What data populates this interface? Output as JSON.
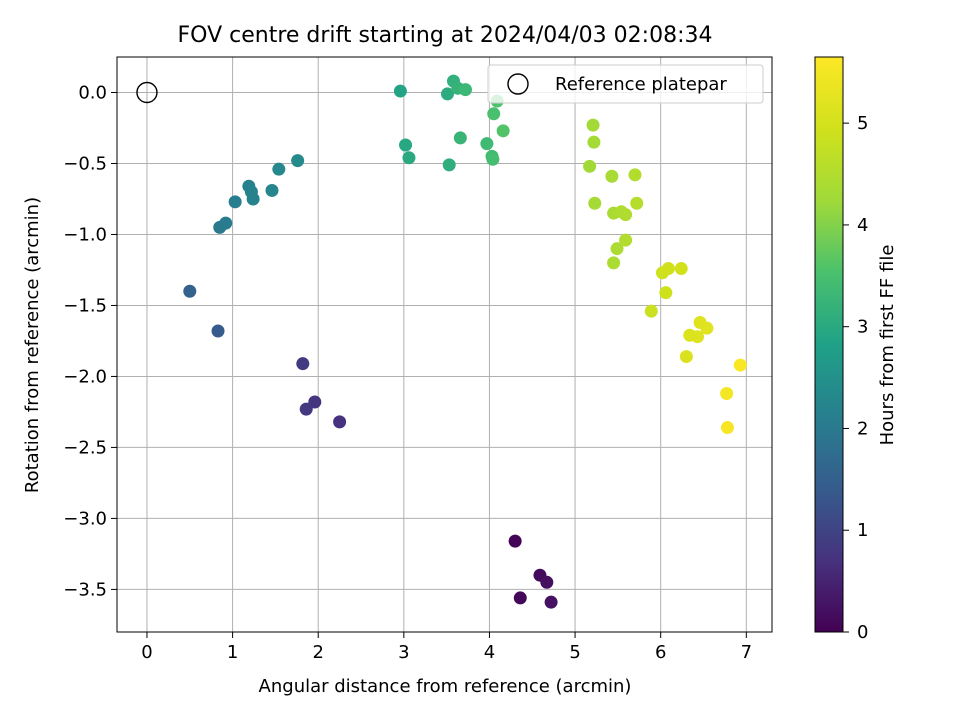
{
  "chart_data": {
    "type": "scatter",
    "title": "FOV centre drift starting at 2024/04/03 02:08:34",
    "xlabel": "Angular distance from reference (arcmin)",
    "ylabel": "Rotation from reference (arcmin)",
    "colorbar_label": "Hours from first FF file",
    "xlim": [
      -0.35,
      7.3
    ],
    "ylim": [
      -3.8,
      0.25
    ],
    "colorbar_range": [
      0,
      5.65
    ],
    "x_ticks": [
      0,
      1,
      2,
      3,
      4,
      5,
      6,
      7
    ],
    "y_ticks": [
      0.0,
      -0.5,
      -1.0,
      -1.5,
      -2.0,
      -2.5,
      -3.0,
      -3.5
    ],
    "colorbar_ticks": [
      0,
      1,
      2,
      3,
      4,
      5
    ],
    "colormap": "viridis",
    "grid": true,
    "legend": {
      "position": "top-right",
      "entries": [
        "Reference platepar"
      ]
    },
    "reference_point": {
      "x": 0,
      "y": 0
    },
    "points": [
      {
        "x": 4.3,
        "y": -3.16,
        "h": 0.05
      },
      {
        "x": 4.36,
        "y": -3.56,
        "h": 0.1
      },
      {
        "x": 4.59,
        "y": -3.4,
        "h": 0.15
      },
      {
        "x": 4.67,
        "y": -3.45,
        "h": 0.2
      },
      {
        "x": 4.72,
        "y": -3.59,
        "h": 0.25
      },
      {
        "x": 2.25,
        "y": -2.32,
        "h": 0.7
      },
      {
        "x": 1.96,
        "y": -2.18,
        "h": 0.75
      },
      {
        "x": 1.86,
        "y": -2.23,
        "h": 0.8
      },
      {
        "x": 1.82,
        "y": -1.91,
        "h": 0.85
      },
      {
        "x": 0.83,
        "y": -1.68,
        "h": 1.4
      },
      {
        "x": 0.5,
        "y": -1.4,
        "h": 1.55
      },
      {
        "x": 0.85,
        "y": -0.95,
        "h": 2.0
      },
      {
        "x": 0.92,
        "y": -0.92,
        "h": 2.05
      },
      {
        "x": 1.03,
        "y": -0.77,
        "h": 2.1
      },
      {
        "x": 1.19,
        "y": -0.66,
        "h": 2.15
      },
      {
        "x": 1.22,
        "y": -0.7,
        "h": 2.18
      },
      {
        "x": 1.24,
        "y": -0.75,
        "h": 2.2
      },
      {
        "x": 1.46,
        "y": -0.69,
        "h": 2.25
      },
      {
        "x": 1.54,
        "y": -0.54,
        "h": 2.3
      },
      {
        "x": 1.76,
        "y": -0.48,
        "h": 2.35
      },
      {
        "x": 2.96,
        "y": 0.01,
        "h": 2.9
      },
      {
        "x": 3.02,
        "y": -0.37,
        "h": 2.95
      },
      {
        "x": 3.06,
        "y": -0.46,
        "h": 3.0
      },
      {
        "x": 3.51,
        "y": -0.01,
        "h": 3.05
      },
      {
        "x": 3.53,
        "y": -0.51,
        "h": 3.1
      },
      {
        "x": 3.58,
        "y": 0.08,
        "h": 3.15
      },
      {
        "x": 3.63,
        "y": 0.03,
        "h": 3.2
      },
      {
        "x": 3.66,
        "y": -0.32,
        "h": 3.25
      },
      {
        "x": 3.72,
        "y": 0.02,
        "h": 3.3
      },
      {
        "x": 3.97,
        "y": -0.36,
        "h": 3.35
      },
      {
        "x": 4.03,
        "y": -0.45,
        "h": 3.4
      },
      {
        "x": 4.04,
        "y": -0.47,
        "h": 3.45
      },
      {
        "x": 4.05,
        "y": -0.15,
        "h": 3.5
      },
      {
        "x": 4.09,
        "y": -0.06,
        "h": 3.55
      },
      {
        "x": 4.16,
        "y": -0.27,
        "h": 3.6
      },
      {
        "x": 5.17,
        "y": -0.52,
        "h": 4.25
      },
      {
        "x": 5.21,
        "y": -0.23,
        "h": 4.28
      },
      {
        "x": 5.22,
        "y": -0.35,
        "h": 4.3
      },
      {
        "x": 5.23,
        "y": -0.78,
        "h": 4.32
      },
      {
        "x": 5.43,
        "y": -0.59,
        "h": 4.35
      },
      {
        "x": 5.45,
        "y": -0.85,
        "h": 4.38
      },
      {
        "x": 5.45,
        "y": -1.2,
        "h": 4.4
      },
      {
        "x": 5.49,
        "y": -1.1,
        "h": 4.42
      },
      {
        "x": 5.54,
        "y": -0.84,
        "h": 4.45
      },
      {
        "x": 5.59,
        "y": -0.86,
        "h": 4.48
      },
      {
        "x": 5.59,
        "y": -1.04,
        "h": 4.5
      },
      {
        "x": 5.7,
        "y": -0.58,
        "h": 4.52
      },
      {
        "x": 5.72,
        "y": -0.78,
        "h": 4.55
      },
      {
        "x": 5.89,
        "y": -1.54,
        "h": 4.85
      },
      {
        "x": 6.02,
        "y": -1.27,
        "h": 4.9
      },
      {
        "x": 6.06,
        "y": -1.41,
        "h": 4.92
      },
      {
        "x": 6.09,
        "y": -1.24,
        "h": 4.95
      },
      {
        "x": 6.24,
        "y": -1.24,
        "h": 4.98
      },
      {
        "x": 6.3,
        "y": -1.86,
        "h": 5.1
      },
      {
        "x": 6.34,
        "y": -1.71,
        "h": 5.12
      },
      {
        "x": 6.43,
        "y": -1.72,
        "h": 5.15
      },
      {
        "x": 6.46,
        "y": -1.62,
        "h": 5.18
      },
      {
        "x": 6.54,
        "y": -1.66,
        "h": 5.2
      },
      {
        "x": 6.77,
        "y": -2.12,
        "h": 5.5
      },
      {
        "x": 6.78,
        "y": -2.36,
        "h": 5.55
      },
      {
        "x": 6.93,
        "y": -1.92,
        "h": 5.6
      }
    ]
  }
}
